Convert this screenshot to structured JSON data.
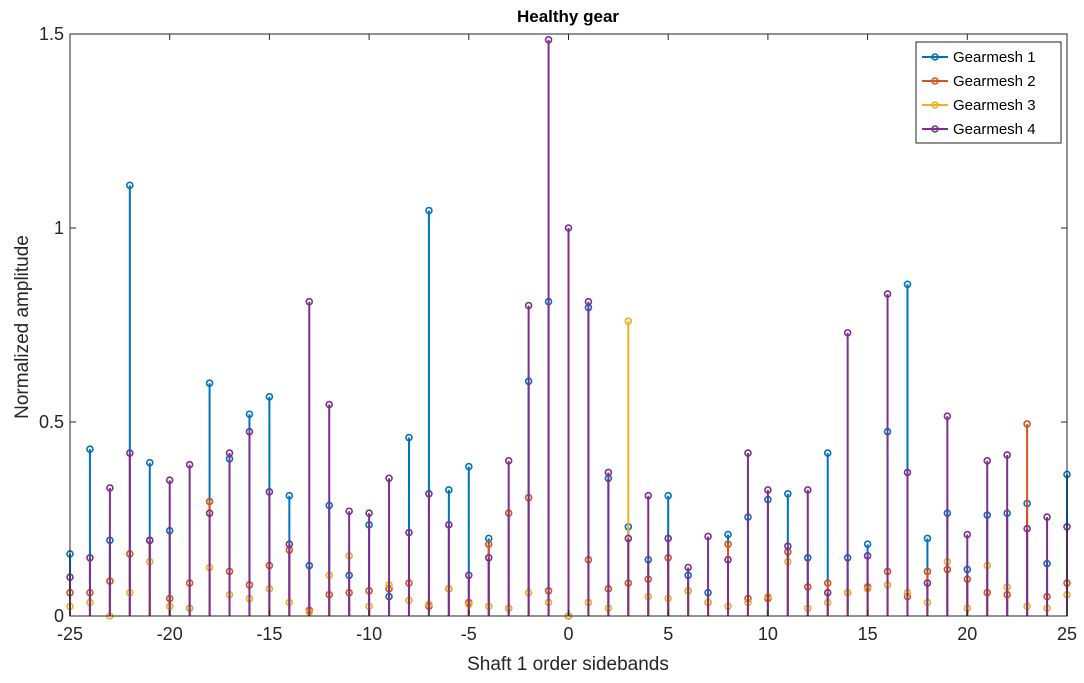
{
  "chart_data": {
    "type": "stem",
    "title": "Healthy gear",
    "xlabel": "Shaft 1 order sidebands",
    "ylabel": "Normalized amplitude",
    "xlim": [
      -25,
      25
    ],
    "ylim": [
      0,
      1.5
    ],
    "xticks": [
      -25,
      -20,
      -15,
      -10,
      -5,
      0,
      5,
      10,
      15,
      20,
      25
    ],
    "yticks": [
      0,
      0.5,
      1,
      1.5
    ],
    "ytick_labels": [
      "0",
      "0.5",
      "1",
      "1.5"
    ],
    "grid": false,
    "legend_position": "top-right",
    "x": [
      -25,
      -24,
      -23,
      -22,
      -21,
      -20,
      -19,
      -18,
      -17,
      -16,
      -15,
      -14,
      -13,
      -12,
      -11,
      -10,
      -9,
      -8,
      -7,
      -6,
      -5,
      -4,
      -3,
      -2,
      -1,
      0,
      1,
      2,
      3,
      4,
      5,
      6,
      7,
      8,
      9,
      10,
      11,
      12,
      13,
      14,
      15,
      16,
      17,
      18,
      19,
      20,
      21,
      22,
      23,
      24,
      25
    ],
    "series": [
      {
        "name": "Gearmesh 1",
        "color": "#0072BD",
        "values": [
          0.16,
          0.43,
          0.195,
          1.11,
          0.395,
          0.22,
          0.02,
          0.6,
          0.405,
          0.52,
          0.565,
          0.31,
          0.13,
          0.285,
          0.105,
          0.235,
          0.05,
          0.46,
          1.045,
          0.325,
          0.385,
          0.2,
          0.02,
          0.605,
          0.81,
          0.0,
          0.795,
          0.355,
          0.23,
          0.145,
          0.31,
          0.105,
          0.06,
          0.21,
          0.255,
          0.3,
          0.315,
          0.15,
          0.42,
          0.15,
          0.185,
          0.475,
          0.855,
          0.2,
          0.265,
          0.12,
          0.26,
          0.265,
          0.29,
          0.135,
          0.365
        ]
      },
      {
        "name": "Gearmesh 2",
        "color": "#D95319",
        "values": [
          0.06,
          0.06,
          0.09,
          0.16,
          0.195,
          0.045,
          0.085,
          0.295,
          0.115,
          0.08,
          0.13,
          0.17,
          0.015,
          0.055,
          0.06,
          0.065,
          0.07,
          0.085,
          0.025,
          0.07,
          0.035,
          0.185,
          0.265,
          0.305,
          0.065,
          0.0,
          0.145,
          0.07,
          0.085,
          0.095,
          0.15,
          0.065,
          0.035,
          0.185,
          0.045,
          0.045,
          0.165,
          0.075,
          0.085,
          0.06,
          0.075,
          0.115,
          0.05,
          0.115,
          0.12,
          0.095,
          0.06,
          0.055,
          0.495,
          0.05,
          0.085
        ]
      },
      {
        "name": "Gearmesh 3",
        "color": "#EDB120",
        "values": [
          0.025,
          0.035,
          0.0,
          0.06,
          0.14,
          0.025,
          0.02,
          0.125,
          0.055,
          0.045,
          0.07,
          0.035,
          0.01,
          0.105,
          0.155,
          0.025,
          0.08,
          0.04,
          0.03,
          0.07,
          0.03,
          0.025,
          0.02,
          0.06,
          0.035,
          0.0,
          0.035,
          0.02,
          0.76,
          0.05,
          0.045,
          0.065,
          0.035,
          0.025,
          0.035,
          0.05,
          0.14,
          0.02,
          0.035,
          0.06,
          0.07,
          0.08,
          0.06,
          0.035,
          0.14,
          0.02,
          0.13,
          0.075,
          0.025,
          0.02,
          0.055
        ]
      },
      {
        "name": "Gearmesh 4",
        "color": "#7E2F8E",
        "values": [
          0.1,
          0.15,
          0.33,
          0.42,
          0.195,
          0.35,
          0.39,
          0.265,
          0.42,
          0.475,
          0.32,
          0.185,
          0.81,
          0.545,
          0.27,
          0.265,
          0.355,
          0.215,
          0.315,
          0.235,
          0.105,
          0.15,
          0.4,
          0.8,
          1.485,
          1.0,
          0.81,
          0.37,
          0.2,
          0.31,
          0.2,
          0.125,
          0.205,
          0.145,
          0.42,
          0.325,
          0.18,
          0.325,
          0.06,
          0.73,
          0.155,
          0.83,
          0.37,
          0.085,
          0.515,
          0.21,
          0.4,
          0.415,
          0.225,
          0.255,
          0.23
        ]
      }
    ]
  }
}
